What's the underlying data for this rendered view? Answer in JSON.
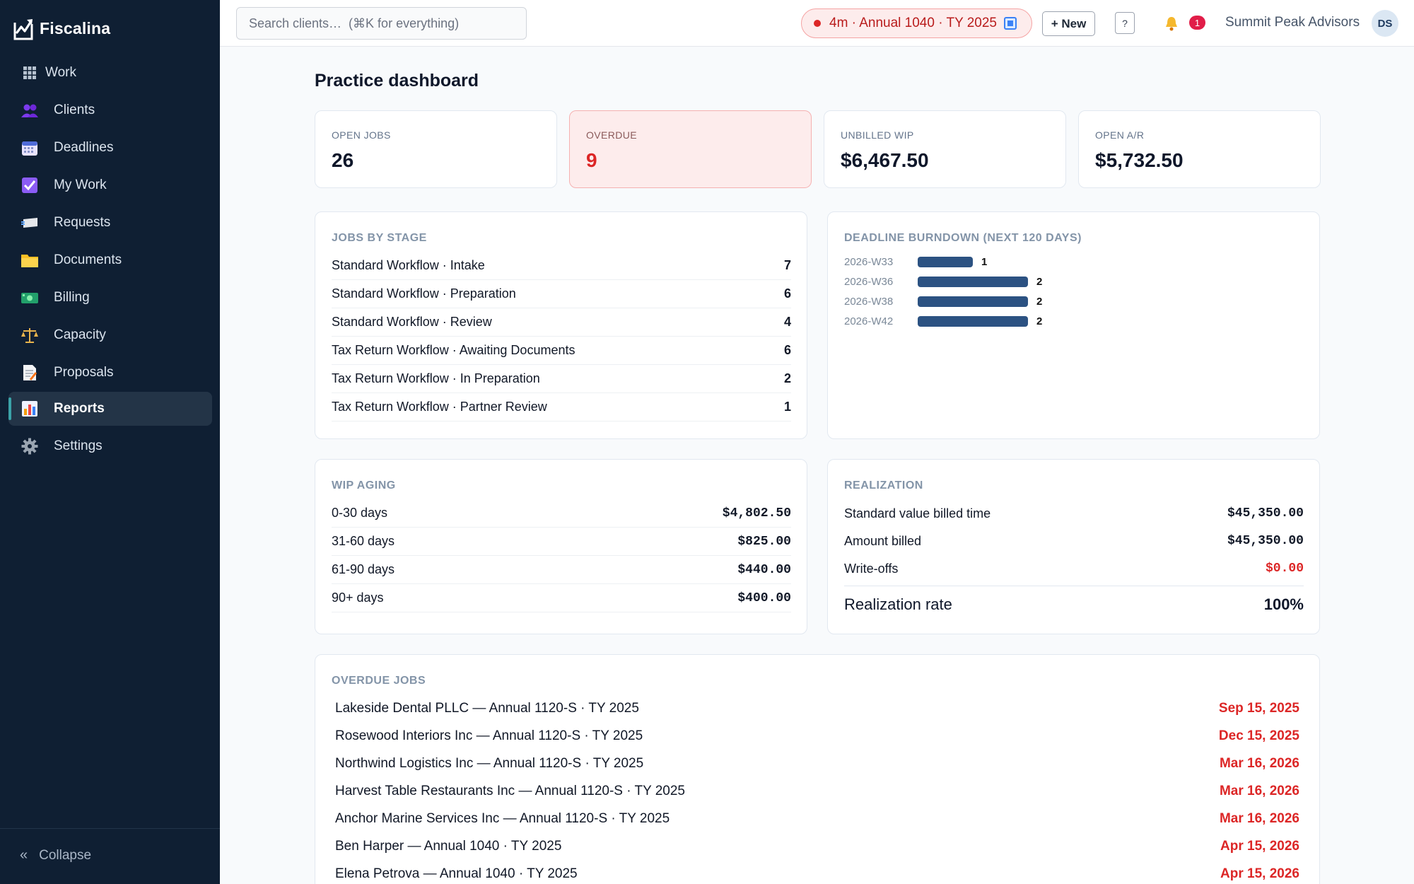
{
  "app": {
    "name": "Fiscalina"
  },
  "sidebar": {
    "items": [
      {
        "label": "Work",
        "icon": "grid-icon"
      },
      {
        "label": "Clients",
        "icon": "users-icon"
      },
      {
        "label": "Deadlines",
        "icon": "calendar-icon"
      },
      {
        "label": "My Work",
        "icon": "checkbox-icon"
      },
      {
        "label": "Requests",
        "icon": "request-icon"
      },
      {
        "label": "Documents",
        "icon": "folder-icon"
      },
      {
        "label": "Billing",
        "icon": "money-icon"
      },
      {
        "label": "Capacity",
        "icon": "scales-icon"
      },
      {
        "label": "Proposals",
        "icon": "proposal-icon"
      },
      {
        "label": "Reports",
        "icon": "bar-chart-icon",
        "active": true
      },
      {
        "label": "Settings",
        "icon": "gear-icon"
      }
    ],
    "collapse_label": "Collapse"
  },
  "topbar": {
    "search_placeholder": "Search clients…  (⌘K for everything)",
    "timer_label": "4m · Annual 1040 · TY 2025",
    "new_label": "+ New",
    "help_label": "?",
    "notification_count": "1",
    "org_name": "Summit Peak Advisors",
    "avatar_initials": "DS"
  },
  "page": {
    "title": "Practice dashboard"
  },
  "stats": [
    {
      "label": "OPEN JOBS",
      "value": "26"
    },
    {
      "label": "OVERDUE",
      "value": "9"
    },
    {
      "label": "UNBILLED WIP",
      "value": "$6,467.50"
    },
    {
      "label": "OPEN A/R",
      "value": "$5,732.50"
    }
  ],
  "jobs_by_stage": {
    "title": "JOBS BY STAGE",
    "rows": [
      {
        "label": "Standard Workflow · Intake",
        "count": "7"
      },
      {
        "label": "Standard Workflow · Preparation",
        "count": "6"
      },
      {
        "label": "Standard Workflow · Review",
        "count": "4"
      },
      {
        "label": "Tax Return Workflow · Awaiting Documents",
        "count": "6"
      },
      {
        "label": "Tax Return Workflow · In Preparation",
        "count": "2"
      },
      {
        "label": "Tax Return Workflow · Partner Review",
        "count": "1"
      }
    ]
  },
  "burndown": {
    "title": "DEADLINE BURNDOWN (NEXT 120 DAYS)",
    "rows": [
      {
        "week": "2026-W33",
        "count": 1
      },
      {
        "week": "2026-W36",
        "count": 2
      },
      {
        "week": "2026-W38",
        "count": 2
      },
      {
        "week": "2026-W42",
        "count": 2
      }
    ],
    "max": 2
  },
  "wip_aging": {
    "title": "WIP AGING",
    "rows": [
      {
        "label": "0-30 days",
        "amount": "$4,802.50"
      },
      {
        "label": "31-60 days",
        "amount": "$825.00"
      },
      {
        "label": "61-90 days",
        "amount": "$440.00"
      },
      {
        "label": "90+ days",
        "amount": "$400.00"
      }
    ]
  },
  "realization": {
    "title": "REALIZATION",
    "standard_label": "Standard value billed time",
    "standard_value": "$45,350.00",
    "billed_label": "Amount billed",
    "billed_value": "$45,350.00",
    "writeoff_label": "Write-offs",
    "writeoff_value": "$0.00",
    "rate_label": "Realization rate",
    "rate_value": "100%"
  },
  "overdue_jobs": {
    "title": "OVERDUE JOBS",
    "rows": [
      {
        "job": "Lakeside Dental PLLC — Annual 1120-S · TY 2025",
        "due": "Sep 15, 2025"
      },
      {
        "job": "Rosewood Interiors Inc — Annual 1120-S · TY 2025",
        "due": "Dec 15, 2025"
      },
      {
        "job": "Northwind Logistics Inc — Annual 1120-S · TY 2025",
        "due": "Mar 16, 2026"
      },
      {
        "job": "Harvest Table Restaurants Inc — Annual 1120-S · TY 2025",
        "due": "Mar 16, 2026"
      },
      {
        "job": "Anchor Marine Services Inc — Annual 1120-S · TY 2025",
        "due": "Mar 16, 2026"
      },
      {
        "job": "Ben Harper — Annual 1040 · TY 2025",
        "due": "Apr 15, 2026"
      },
      {
        "job": "Elena Petrova — Annual 1040 · TY 2025",
        "due": "Apr 15, 2026"
      }
    ]
  },
  "colors": {
    "sidebar_bg": "#0f1f33",
    "accent": "#3ba3a8",
    "overdue": "#dc2626",
    "bar": "#2c5282"
  }
}
